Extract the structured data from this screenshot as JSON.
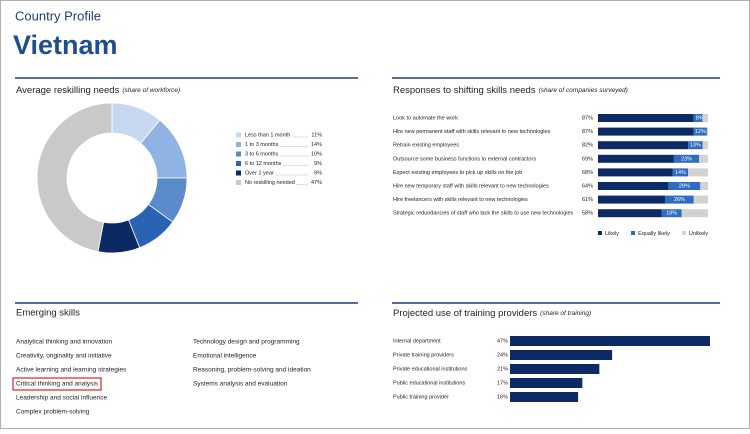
{
  "header": {
    "kicker": "Country Profile",
    "title": "Vietnam"
  },
  "chart_data": [
    {
      "type": "pie",
      "title": "Average reskilling needs",
      "subtitle": "(share of workforce)",
      "categories": [
        "Less than 1 month",
        "1 to 3 months",
        "3 to 6 months",
        "6 to 12 months",
        "Over 1 year",
        "No reskilling needed"
      ],
      "values": [
        11,
        14,
        10,
        9,
        9,
        47
      ],
      "value_labels": [
        "11%",
        "14%",
        "10%",
        "9%",
        "9%",
        "47%"
      ],
      "colors": [
        "#c6d9f1",
        "#8fb4e3",
        "#5b8bcb",
        "#2a63b4",
        "#0b2a63",
        "#c9c9c9"
      ]
    },
    {
      "type": "stacked_bar",
      "title": "Responses to shifting skills needs",
      "subtitle": "(share of companies surveyed)",
      "categories": [
        "Look to automate the work",
        "Hire new permanent staff with skills relevant to new technologies",
        "Retrain existing employees",
        "Outsource some business functions to external contractors",
        "Expect existing employees to pick up skills on the job",
        "Hire new temporary staff with skills relevant to new technologies",
        "Hire freelancers with skills relevant to new technologies",
        "Strategic redundancies of staff who lack the skills to use new technologies"
      ],
      "series": [
        {
          "name": "Likely",
          "color": "#0d2a66",
          "values": [
            87,
            87,
            82,
            69,
            68,
            64,
            61,
            58
          ],
          "value_labels": [
            "87%",
            "87%",
            "82%",
            "69%",
            "68%",
            "64%",
            "61%",
            "58%"
          ]
        },
        {
          "name": "Equally likely",
          "color": "#2f6cc0",
          "values": [
            8,
            12,
            13,
            23,
            14,
            29,
            26,
            18
          ],
          "value_labels": [
            "8%",
            "12%",
            "13%",
            "23%",
            "14%",
            "29%",
            "26%",
            "18%"
          ]
        },
        {
          "name": "Unlikely",
          "color": "#d2d2d2",
          "values": [
            5,
            1,
            5,
            8,
            18,
            7,
            13,
            24
          ]
        }
      ]
    },
    {
      "type": "bar",
      "title": "Projected use of training providers",
      "subtitle": "(share of training)",
      "categories": [
        "Internal department",
        "Private training providers",
        "Private educational institutions",
        "Public educational institutions",
        "Public training provider"
      ],
      "values": [
        47,
        24,
        21,
        17,
        16
      ],
      "value_labels": [
        "47%",
        "24%",
        "21%",
        "17%",
        "16%"
      ],
      "color": "#0d2a66"
    }
  ],
  "skills": {
    "title": "Emerging skills",
    "columns": [
      [
        "Analytical thinking and innovation",
        "Creativity, originality and initiative",
        "Active learning and learning strategies",
        "Critical thinking and analysis",
        "Leadership and social influence",
        "Complex problem-solving"
      ],
      [
        "Technology design and programming",
        "Emotional intelligence",
        "Reasoning, problem-solving and ideation",
        "Systems analysis and evaluation"
      ]
    ],
    "highlight": {
      "column": 0,
      "row": 3
    }
  }
}
